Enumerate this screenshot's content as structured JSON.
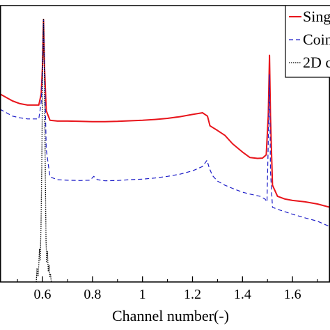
{
  "chart_data": {
    "type": "line",
    "xlabel": "Channel number(-)",
    "ylabel": "",
    "xlim": [
      0.43,
      1.75
    ],
    "ylim": [
      0,
      1
    ],
    "xticks": [
      0.6,
      0.8,
      1,
      1.2,
      1.4,
      1.6
    ],
    "xtick_labels": [
      "0.6",
      "0.8",
      "1",
      "1.2",
      "1.4",
      "1.6"
    ],
    "grid": false,
    "legend_position": "top-right",
    "series": [
      {
        "name": "Sing",
        "color": "#e8141b",
        "style": "solid",
        "points": [
          [
            0.43,
            0.68
          ],
          [
            0.45,
            0.67
          ],
          [
            0.48,
            0.655
          ],
          [
            0.51,
            0.645
          ],
          [
            0.54,
            0.64
          ],
          [
            0.57,
            0.64
          ],
          [
            0.585,
            0.64
          ],
          [
            0.595,
            0.68
          ],
          [
            0.6,
            0.78
          ],
          [
            0.604,
            0.95
          ],
          [
            0.608,
            0.78
          ],
          [
            0.615,
            0.62
          ],
          [
            0.63,
            0.585
          ],
          [
            0.66,
            0.582
          ],
          [
            0.7,
            0.582
          ],
          [
            0.75,
            0.581
          ],
          [
            0.8,
            0.58
          ],
          [
            0.85,
            0.58
          ],
          [
            0.9,
            0.581
          ],
          [
            0.95,
            0.583
          ],
          [
            1.0,
            0.585
          ],
          [
            1.05,
            0.588
          ],
          [
            1.1,
            0.592
          ],
          [
            1.15,
            0.598
          ],
          [
            1.2,
            0.606
          ],
          [
            1.24,
            0.612
          ],
          [
            1.26,
            0.6
          ],
          [
            1.27,
            0.565
          ],
          [
            1.3,
            0.548
          ],
          [
            1.33,
            0.53
          ],
          [
            1.36,
            0.5
          ],
          [
            1.4,
            0.47
          ],
          [
            1.43,
            0.45
          ],
          [
            1.46,
            0.447
          ],
          [
            1.48,
            0.448
          ],
          [
            1.495,
            0.46
          ],
          [
            1.503,
            0.6
          ],
          [
            1.508,
            0.82
          ],
          [
            1.512,
            0.6
          ],
          [
            1.52,
            0.35
          ],
          [
            1.54,
            0.31
          ],
          [
            1.57,
            0.3
          ],
          [
            1.6,
            0.295
          ],
          [
            1.65,
            0.29
          ],
          [
            1.7,
            0.282
          ],
          [
            1.75,
            0.27
          ]
        ]
      },
      {
        "name": "Coin",
        "color": "#1d1dc8",
        "style": "dashed",
        "points": [
          [
            0.43,
            0.625
          ],
          [
            0.45,
            0.615
          ],
          [
            0.48,
            0.6
          ],
          [
            0.51,
            0.594
          ],
          [
            0.54,
            0.59
          ],
          [
            0.57,
            0.59
          ],
          [
            0.585,
            0.59
          ],
          [
            0.595,
            0.65
          ],
          [
            0.6,
            0.78
          ],
          [
            0.604,
            0.95
          ],
          [
            0.608,
            0.78
          ],
          [
            0.615,
            0.48
          ],
          [
            0.63,
            0.38
          ],
          [
            0.66,
            0.37
          ],
          [
            0.7,
            0.368
          ],
          [
            0.75,
            0.367
          ],
          [
            0.79,
            0.368
          ],
          [
            0.805,
            0.382
          ],
          [
            0.82,
            0.37
          ],
          [
            0.85,
            0.366
          ],
          [
            0.9,
            0.367
          ],
          [
            0.95,
            0.37
          ],
          [
            1.0,
            0.372
          ],
          [
            1.05,
            0.376
          ],
          [
            1.1,
            0.382
          ],
          [
            1.15,
            0.39
          ],
          [
            1.2,
            0.402
          ],
          [
            1.24,
            0.418
          ],
          [
            1.258,
            0.44
          ],
          [
            1.268,
            0.41
          ],
          [
            1.28,
            0.385
          ],
          [
            1.3,
            0.365
          ],
          [
            1.33,
            0.35
          ],
          [
            1.37,
            0.335
          ],
          [
            1.4,
            0.325
          ],
          [
            1.43,
            0.318
          ],
          [
            1.47,
            0.31
          ],
          [
            1.49,
            0.3
          ],
          [
            1.498,
            0.29
          ],
          [
            1.504,
            0.55
          ],
          [
            1.508,
            0.75
          ],
          [
            1.512,
            0.4
          ],
          [
            1.52,
            0.27
          ],
          [
            1.55,
            0.26
          ],
          [
            1.6,
            0.245
          ],
          [
            1.65,
            0.232
          ],
          [
            1.7,
            0.22
          ],
          [
            1.75,
            0.2
          ]
        ]
      },
      {
        "name": "2D c",
        "color": "#000000",
        "style": "dotted",
        "points": [
          [
            0.575,
            0.0
          ],
          [
            0.578,
            0.05
          ],
          [
            0.582,
            0.02
          ],
          [
            0.585,
            0.06
          ],
          [
            0.588,
            0.12
          ],
          [
            0.591,
            0.08
          ],
          [
            0.594,
            0.2
          ],
          [
            0.597,
            0.42
          ],
          [
            0.6,
            0.72
          ],
          [
            0.604,
            0.95
          ],
          [
            0.608,
            0.72
          ],
          [
            0.611,
            0.42
          ],
          [
            0.614,
            0.15
          ],
          [
            0.617,
            0.07
          ],
          [
            0.62,
            0.11
          ],
          [
            0.623,
            0.04
          ],
          [
            0.626,
            0.06
          ],
          [
            0.629,
            0.02
          ],
          [
            0.632,
            0.03
          ],
          [
            0.635,
            0.0
          ]
        ]
      }
    ]
  }
}
